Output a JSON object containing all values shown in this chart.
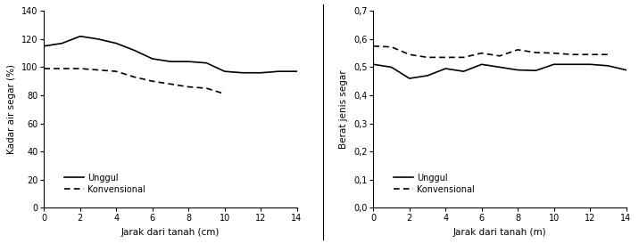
{
  "left": {
    "x_unggul": [
      0,
      1,
      2,
      3,
      4,
      5,
      6,
      7,
      8,
      9,
      10,
      11,
      12,
      13,
      14
    ],
    "y_unggul": [
      115,
      117,
      122,
      120,
      117,
      112,
      106,
      104,
      104,
      103,
      97,
      96,
      96,
      97,
      97
    ],
    "x_konv": [
      0,
      1,
      2,
      3,
      4,
      5,
      6,
      7,
      8,
      9,
      10
    ],
    "y_konv": [
      99,
      99,
      99,
      98,
      97,
      93,
      90,
      88,
      86,
      85,
      81
    ],
    "ylabel": "Kadar air segar (%)",
    "xlabel": "Jarak dari tanah (cm)",
    "ylim": [
      0,
      140
    ],
    "yticks": [
      0,
      20,
      40,
      60,
      80,
      100,
      120,
      140
    ],
    "xticks": [
      0,
      2,
      4,
      6,
      8,
      10,
      12,
      14
    ]
  },
  "right": {
    "x_unggul": [
      0,
      1,
      2,
      3,
      4,
      5,
      6,
      7,
      8,
      9,
      10,
      11,
      12,
      13,
      14
    ],
    "y_unggul": [
      0.51,
      0.5,
      0.46,
      0.47,
      0.495,
      0.485,
      0.51,
      0.5,
      0.49,
      0.488,
      0.51,
      0.51,
      0.51,
      0.505,
      0.49
    ],
    "x_konv": [
      0,
      1,
      2,
      3,
      4,
      5,
      6,
      7,
      8,
      9,
      10,
      11,
      12,
      13
    ],
    "y_konv": [
      0.575,
      0.572,
      0.545,
      0.535,
      0.535,
      0.535,
      0.55,
      0.54,
      0.562,
      0.552,
      0.55,
      0.545,
      0.545,
      0.545
    ],
    "ylabel": "Berat jenis segar",
    "xlabel": "Jarak dari tanah (m)",
    "ylim": [
      0.0,
      0.7
    ],
    "yticks": [
      0.0,
      0.1,
      0.2,
      0.3,
      0.4,
      0.5,
      0.6,
      0.7
    ],
    "xticks": [
      0,
      2,
      4,
      6,
      8,
      10,
      12,
      14
    ]
  },
  "legend_unggul": "Unggul",
  "legend_konvensional": "Konvensional",
  "line_color": "#000000",
  "bg_color": "#ffffff",
  "fontsize": 7.5
}
